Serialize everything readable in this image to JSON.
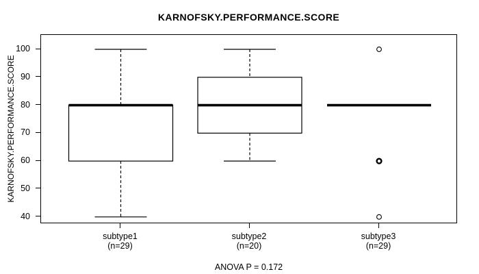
{
  "figure": {
    "title": "KARNOFSKY.PERFORMANCE.SCORE",
    "y_axis_label": "KARNOFSKY.PERFORMANCE.SCORE",
    "annotation": "ANOVA P = 0.172"
  },
  "chart_data": {
    "type": "boxplot",
    "title": "KARNOFSKY.PERFORMANCE.SCORE",
    "xlabel": "",
    "ylabel": "KARNOFSKY.PERFORMANCE.SCORE",
    "ylim": [
      40,
      100
    ],
    "yticks": [
      100,
      90,
      80,
      70,
      60,
      50,
      40
    ],
    "grid": false,
    "legend": null,
    "annotation": "ANOVA P = 0.172",
    "groups": [
      {
        "label": "subtype1",
        "sublabel": "(n=29)",
        "n": 29,
        "whisker_low": 40,
        "q1": 60,
        "median": 80,
        "q3": 80,
        "whisker_high": 100,
        "outliers": [],
        "outliers_emphasized": []
      },
      {
        "label": "subtype2",
        "sublabel": "(n=20)",
        "n": 20,
        "whisker_low": 60,
        "q1": 70,
        "median": 80,
        "q3": 90,
        "whisker_high": 100,
        "outliers": [],
        "outliers_emphasized": []
      },
      {
        "label": "subtype3",
        "sublabel": "(n=29)",
        "n": 29,
        "whisker_low": 80,
        "q1": 80,
        "median": 80,
        "q3": 80,
        "whisker_high": 80,
        "outliers": [
          100,
          60,
          40
        ],
        "outliers_emphasized": [
          60
        ]
      }
    ]
  }
}
